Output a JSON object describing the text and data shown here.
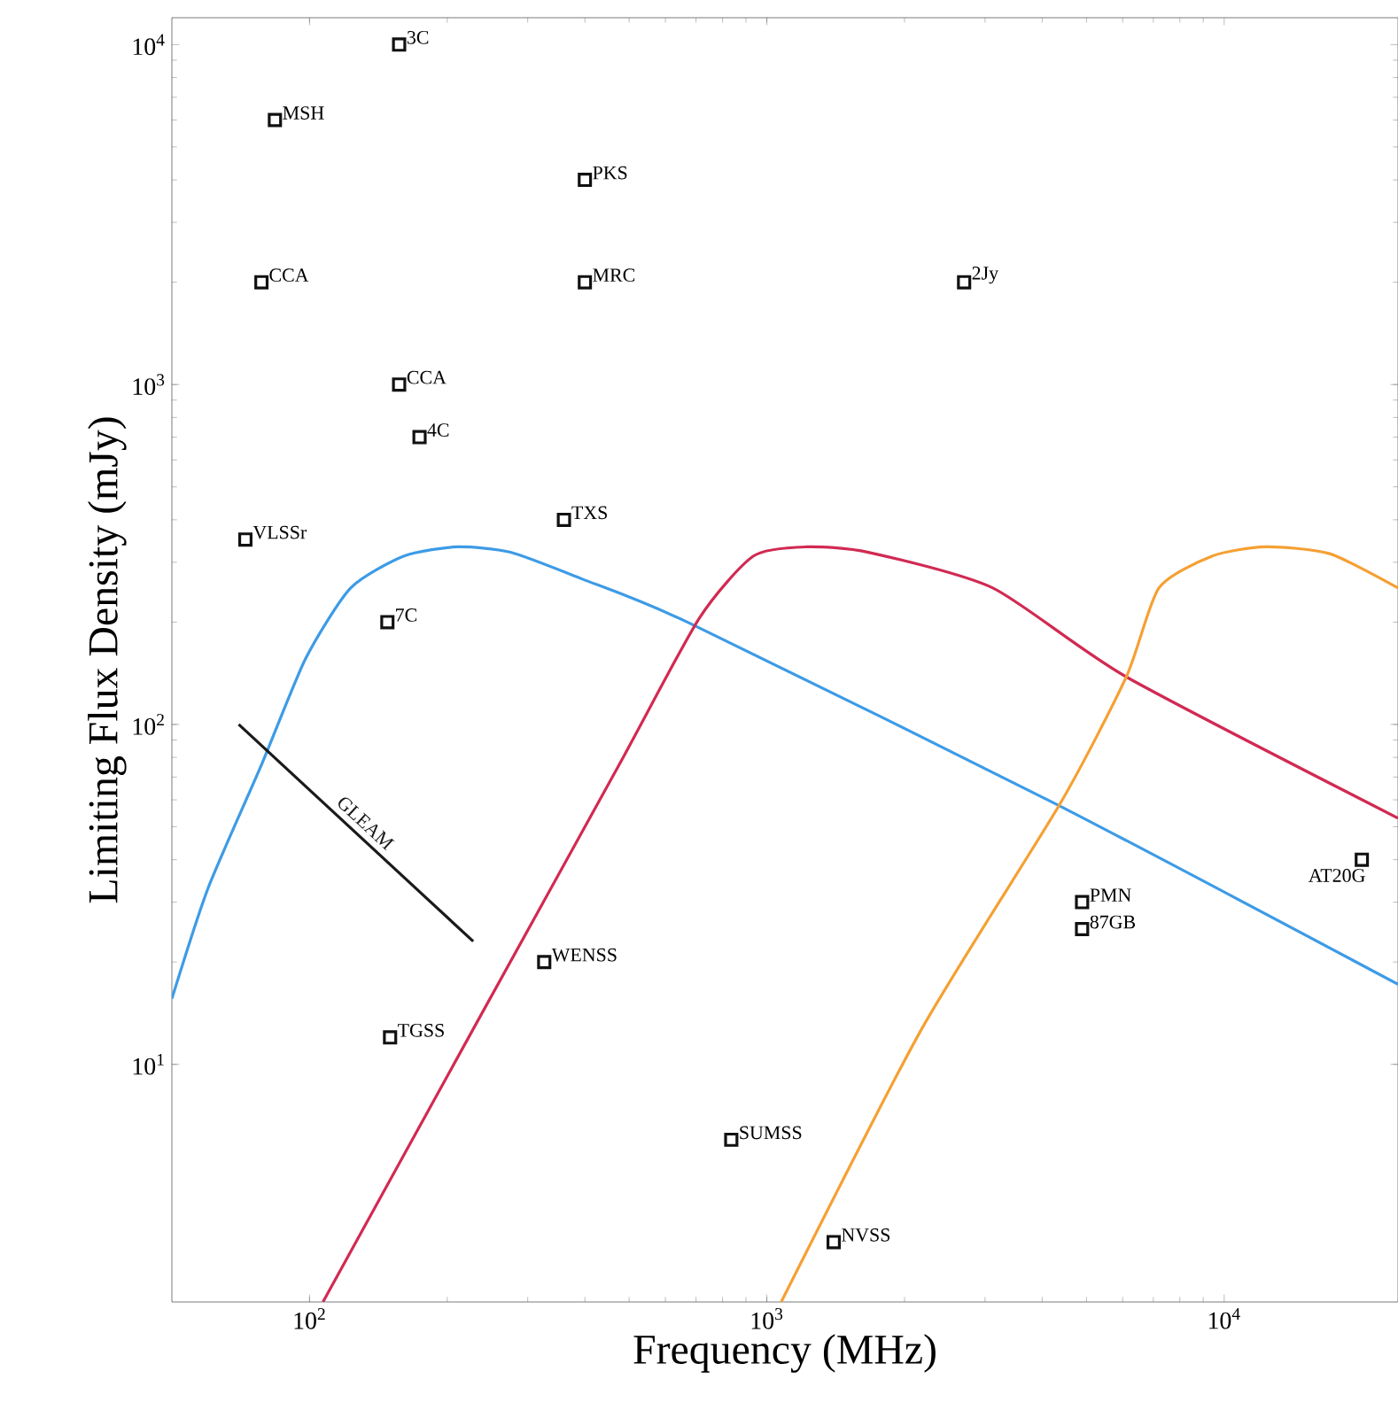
{
  "chart_data": {
    "type": "line",
    "xlabel": "Frequency (MHz)",
    "ylabel": "Limiting Flux Density (mJy)",
    "log": "xy",
    "xlim": [
      50,
      24000
    ],
    "ylim": [
      2,
      12000
    ],
    "xticks": [
      {
        "value": 100,
        "label": "10$^{2}$"
      },
      {
        "value": 1000,
        "label": "10$^{3}$"
      },
      {
        "value": 10000,
        "label": "10$^{4}$"
      }
    ],
    "yticks": [
      {
        "value": 10,
        "label": "10$^{1}$"
      },
      {
        "value": 100,
        "label": "10$^{2}$"
      },
      {
        "value": 1000,
        "label": "10$^{3}$"
      },
      {
        "value": 10000,
        "label": "10$^{4}$"
      }
    ],
    "grid": false,
    "series": [
      {
        "color": "#3d9be6",
        "x": [
          50,
          60,
          78.5,
          98,
          123,
          161,
          210,
          275,
          394,
          681,
          4270,
          24000
        ],
        "values": [
          15.6,
          33,
          76,
          156,
          252,
          313,
          333,
          321,
          268,
          198,
          58.5,
          17.2
        ]
      },
      {
        "color": "#d12a52",
        "x": [
          107,
          228,
          475,
          711,
          935,
          1220,
          1667,
          3120,
          6110,
          24000
        ],
        "values": [
          2,
          12.7,
          76,
          205,
          313,
          333,
          321,
          252,
          138,
          53
        ]
      },
      {
        "color": "#f5a033",
        "x": [
          1075,
          2180,
          4380,
          6110,
          7200,
          9430,
          12300,
          17000,
          24000
        ],
        "values": [
          2,
          12.7,
          58.5,
          138,
          252,
          313,
          333,
          318,
          252
        ]
      },
      {
        "name": "GLEAM",
        "color": "#1a1a1a",
        "x": [
          70,
          228
        ],
        "values": [
          100,
          23
        ]
      },
      {
        "type": "scatter",
        "marker": "square",
        "color": "#111111",
        "x": [
          157,
          84,
          78.5,
          400,
          400,
          157,
          174,
          360,
          72.4,
          2700,
          148,
          326,
          150,
          836,
          1400,
          4890,
          4890,
          20000
        ],
        "values": [
          10000,
          6000,
          2000,
          4000,
          2000,
          1000,
          700,
          400,
          350,
          2000,
          200,
          20,
          12,
          6,
          3,
          30,
          25,
          40
        ]
      }
    ],
    "annotations": [
      {
        "text": "3C",
        "x": 157,
        "y": 10000
      },
      {
        "text": "MSH",
        "x": 84,
        "y": 6000
      },
      {
        "text": "CCA",
        "x": 78.5,
        "y": 2000
      },
      {
        "text": "PKS",
        "x": 400,
        "y": 4000
      },
      {
        "text": "MRC",
        "x": 400,
        "y": 2000
      },
      {
        "text": "CCA",
        "x": 157,
        "y": 1000
      },
      {
        "text": "4C",
        "x": 174,
        "y": 700
      },
      {
        "text": "TXS",
        "x": 360,
        "y": 400
      },
      {
        "text": "VLSSr",
        "x": 72.4,
        "y": 350
      },
      {
        "text": "2Jy",
        "x": 2700,
        "y": 2000
      },
      {
        "text": "7C",
        "x": 148,
        "y": 200
      },
      {
        "text": "WENSS",
        "x": 326,
        "y": 20
      },
      {
        "text": "TGSS",
        "x": 150,
        "y": 12
      },
      {
        "text": "SUMSS",
        "x": 836,
        "y": 6
      },
      {
        "text": "NVSS",
        "x": 1400,
        "y": 3
      },
      {
        "text": "PMN",
        "x": 4890,
        "y": 30
      },
      {
        "text": "87GB",
        "x": 4890,
        "y": 25
      },
      {
        "text": "AT20G",
        "x": 20000,
        "y": 40
      }
    ]
  }
}
